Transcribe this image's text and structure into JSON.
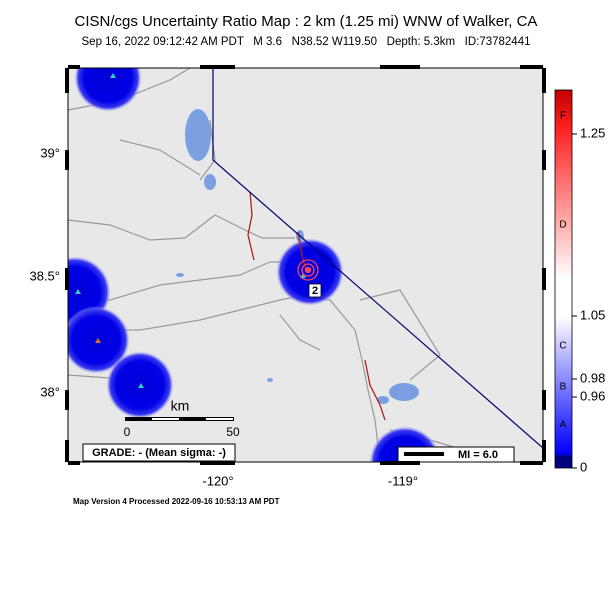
{
  "header": {
    "title": "CISN/cgs Uncertainty Ratio Map : 2 km (1.25 mi) WNW of Walker, CA",
    "subtitle": "Sep 16, 2022 09:12:42 AM PDT   M 3.6   N38.52 W119.50   Depth: 5.3km   ID:73782441"
  },
  "map": {
    "lat_labels": [
      "39°",
      "38.5°",
      "38°"
    ],
    "lon_labels": [
      "-120°",
      "-119°"
    ],
    "station_label": "2",
    "scale_bar": {
      "unit": "km",
      "labels": [
        0,
        50
      ]
    },
    "grade": "GRADE: - (Mean sigma: -)",
    "legend": "MI = 6.0"
  },
  "colorbar": {
    "letters": [
      "F",
      "D",
      "C",
      "B",
      "A"
    ],
    "ticks": [
      1.25,
      1.05,
      0.98,
      0.96,
      0
    ]
  },
  "footer": "Map Version 4 Processed 2022-09-16 10:53:13 AM PDT"
}
